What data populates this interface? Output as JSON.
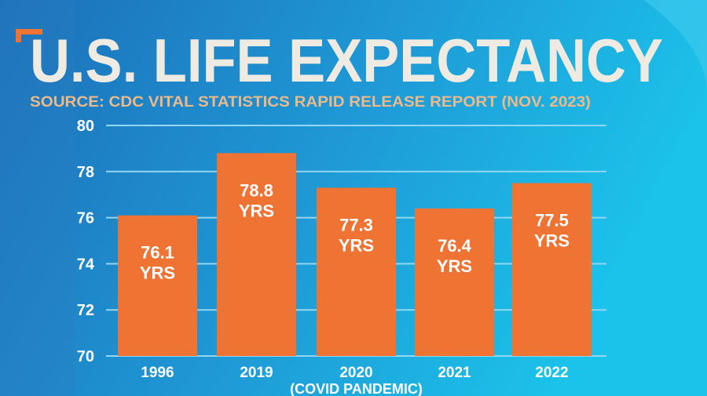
{
  "chart_data": {
    "type": "bar",
    "title": "U.S. LIFE EXPECTANCY",
    "subtitle": "SOURCE: CDC VITAL STATISTICS RAPID RELEASE REPORT (NOV. 2023)",
    "categories": [
      "1996",
      "2019",
      "2020",
      "2021",
      "2022"
    ],
    "category_notes": [
      "",
      "",
      "(COVID PANDEMIC)",
      "",
      ""
    ],
    "values": [
      76.1,
      78.8,
      77.3,
      76.4,
      77.5
    ],
    "value_labels": [
      "76.1",
      "78.8",
      "77.3",
      "76.4",
      "77.5"
    ],
    "unit_label": "YRS",
    "ylim": [
      70,
      80
    ],
    "yticks": [
      "70",
      "72",
      "74",
      "76",
      "78",
      "80"
    ],
    "xlabel": "",
    "ylabel": "",
    "grid": true,
    "colors": {
      "bar": "#ef7332",
      "title": "#efebe2",
      "subtitle": "#ebb98a",
      "grid": "#93d6f2",
      "accent": "#ef7332"
    }
  }
}
